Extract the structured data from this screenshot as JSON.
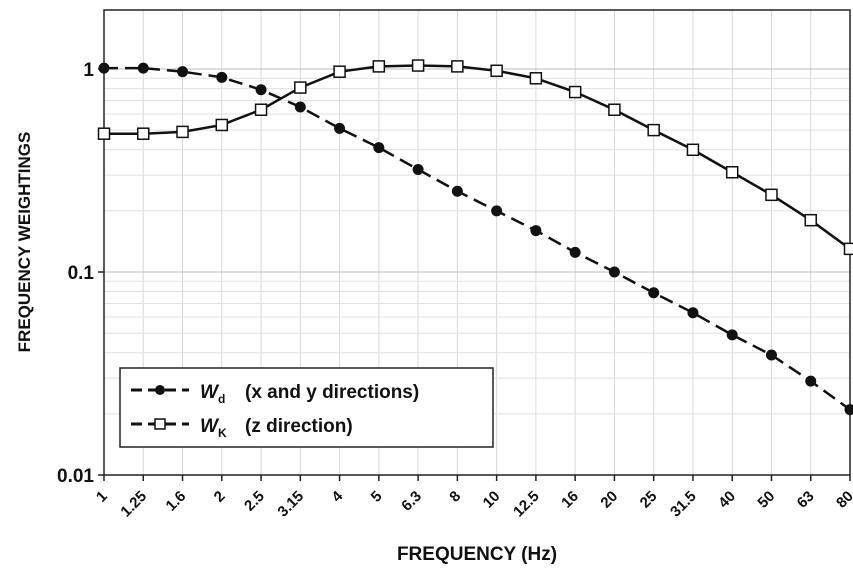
{
  "chart_data": {
    "type": "line",
    "title": "",
    "xlabel": "FREQUENCY (Hz)",
    "ylabel": "FREQUENCY WEIGHTINGS",
    "x_scale": "log",
    "y_scale": "log",
    "x_ticks": [
      "1",
      "1.25",
      "1.6",
      "2",
      "2.5",
      "3.15",
      "4",
      "5",
      "6.3",
      "8",
      "10",
      "12.5",
      "16",
      "20",
      "25",
      "31.5",
      "40",
      "50",
      "63",
      "80"
    ],
    "y_ticks": [
      "0.01",
      "0.1",
      "1"
    ],
    "ylim": [
      0.01,
      2.0
    ],
    "grid": true,
    "legend_position": "bottom-left",
    "x": [
      1,
      1.25,
      1.6,
      2,
      2.5,
      3.15,
      4,
      5,
      6.3,
      8,
      10,
      12.5,
      16,
      20,
      25,
      31.5,
      40,
      50,
      63,
      80
    ],
    "series": [
      {
        "name_symbol": "W",
        "name_subscript": "d",
        "name_suffix": "(x and y directions)",
        "marker": "filled-circle",
        "line_style": "dashed",
        "color": "#111111",
        "values": [
          1.01,
          1.01,
          0.97,
          0.91,
          0.79,
          0.65,
          0.51,
          0.41,
          0.32,
          0.25,
          0.2,
          0.16,
          0.125,
          0.1,
          0.079,
          0.063,
          0.049,
          0.039,
          0.029,
          0.021
        ]
      },
      {
        "name_symbol": "W",
        "name_subscript": "K",
        "name_suffix": "(z direction)",
        "marker": "open-square",
        "line_style": "solid",
        "color": "#111111",
        "values": [
          0.48,
          0.48,
          0.49,
          0.53,
          0.63,
          0.81,
          0.97,
          1.03,
          1.04,
          1.03,
          0.98,
          0.9,
          0.77,
          0.63,
          0.5,
          0.4,
          0.31,
          0.24,
          0.18,
          0.13
        ]
      }
    ]
  }
}
